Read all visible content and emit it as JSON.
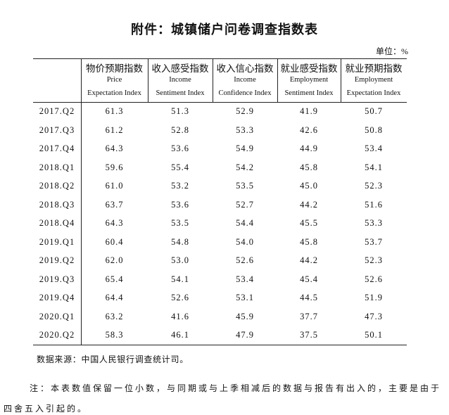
{
  "header": {
    "title": "附件：城镇储户问卷调查指数表",
    "unit": "单位：%"
  },
  "table": {
    "columns": [
      {
        "zh": "物价预期指数",
        "en": [
          "Price",
          "Expectation Index"
        ]
      },
      {
        "zh": "收入感受指数",
        "en": [
          "Income",
          "Sentiment Index"
        ]
      },
      {
        "zh": "收入信心指数",
        "en": [
          "Income",
          "Confidence Index"
        ]
      },
      {
        "zh": "就业感受指数",
        "en": [
          "Employment",
          "Sentiment Index"
        ]
      },
      {
        "zh": "就业预期指数",
        "en": [
          "Employment",
          "Expectation Index"
        ]
      }
    ],
    "rows": [
      [
        "2017.Q2",
        "61.3",
        "51.3",
        "52.9",
        "41.9",
        "50.7"
      ],
      [
        "2017.Q3",
        "61.2",
        "52.8",
        "53.3",
        "42.6",
        "50.8"
      ],
      [
        "2017.Q4",
        "64.3",
        "53.6",
        "54.9",
        "44.9",
        "53.4"
      ],
      [
        "2018.Q1",
        "59.6",
        "55.4",
        "54.2",
        "45.8",
        "54.1"
      ],
      [
        "2018.Q2",
        "61.0",
        "53.2",
        "53.5",
        "45.0",
        "52.3"
      ],
      [
        "2018.Q3",
        "63.7",
        "53.6",
        "52.7",
        "44.2",
        "51.6"
      ],
      [
        "2018.Q4",
        "64.3",
        "53.5",
        "54.4",
        "45.5",
        "53.3"
      ],
      [
        "2019.Q1",
        "60.4",
        "54.8",
        "54.0",
        "45.8",
        "53.7"
      ],
      [
        "2019.Q2",
        "62.0",
        "53.0",
        "52.6",
        "44.2",
        "52.3"
      ],
      [
        "2019.Q3",
        "65.4",
        "54.1",
        "53.4",
        "45.4",
        "52.6"
      ],
      [
        "2019.Q4",
        "64.4",
        "52.6",
        "53.1",
        "44.5",
        "51.9"
      ],
      [
        "2020.Q1",
        "63.2",
        "41.6",
        "45.9",
        "37.7",
        "47.3"
      ],
      [
        "2020.Q2",
        "58.3",
        "46.1",
        "47.9",
        "37.5",
        "50.1"
      ]
    ]
  },
  "footer": {
    "source": "数据来源：中国人民银行调查统计司。",
    "note": "注：本表数值保留一位小数，与同期或与上季相减后的数据与报告有出入的，主要是由于四舍五入引起的。"
  }
}
